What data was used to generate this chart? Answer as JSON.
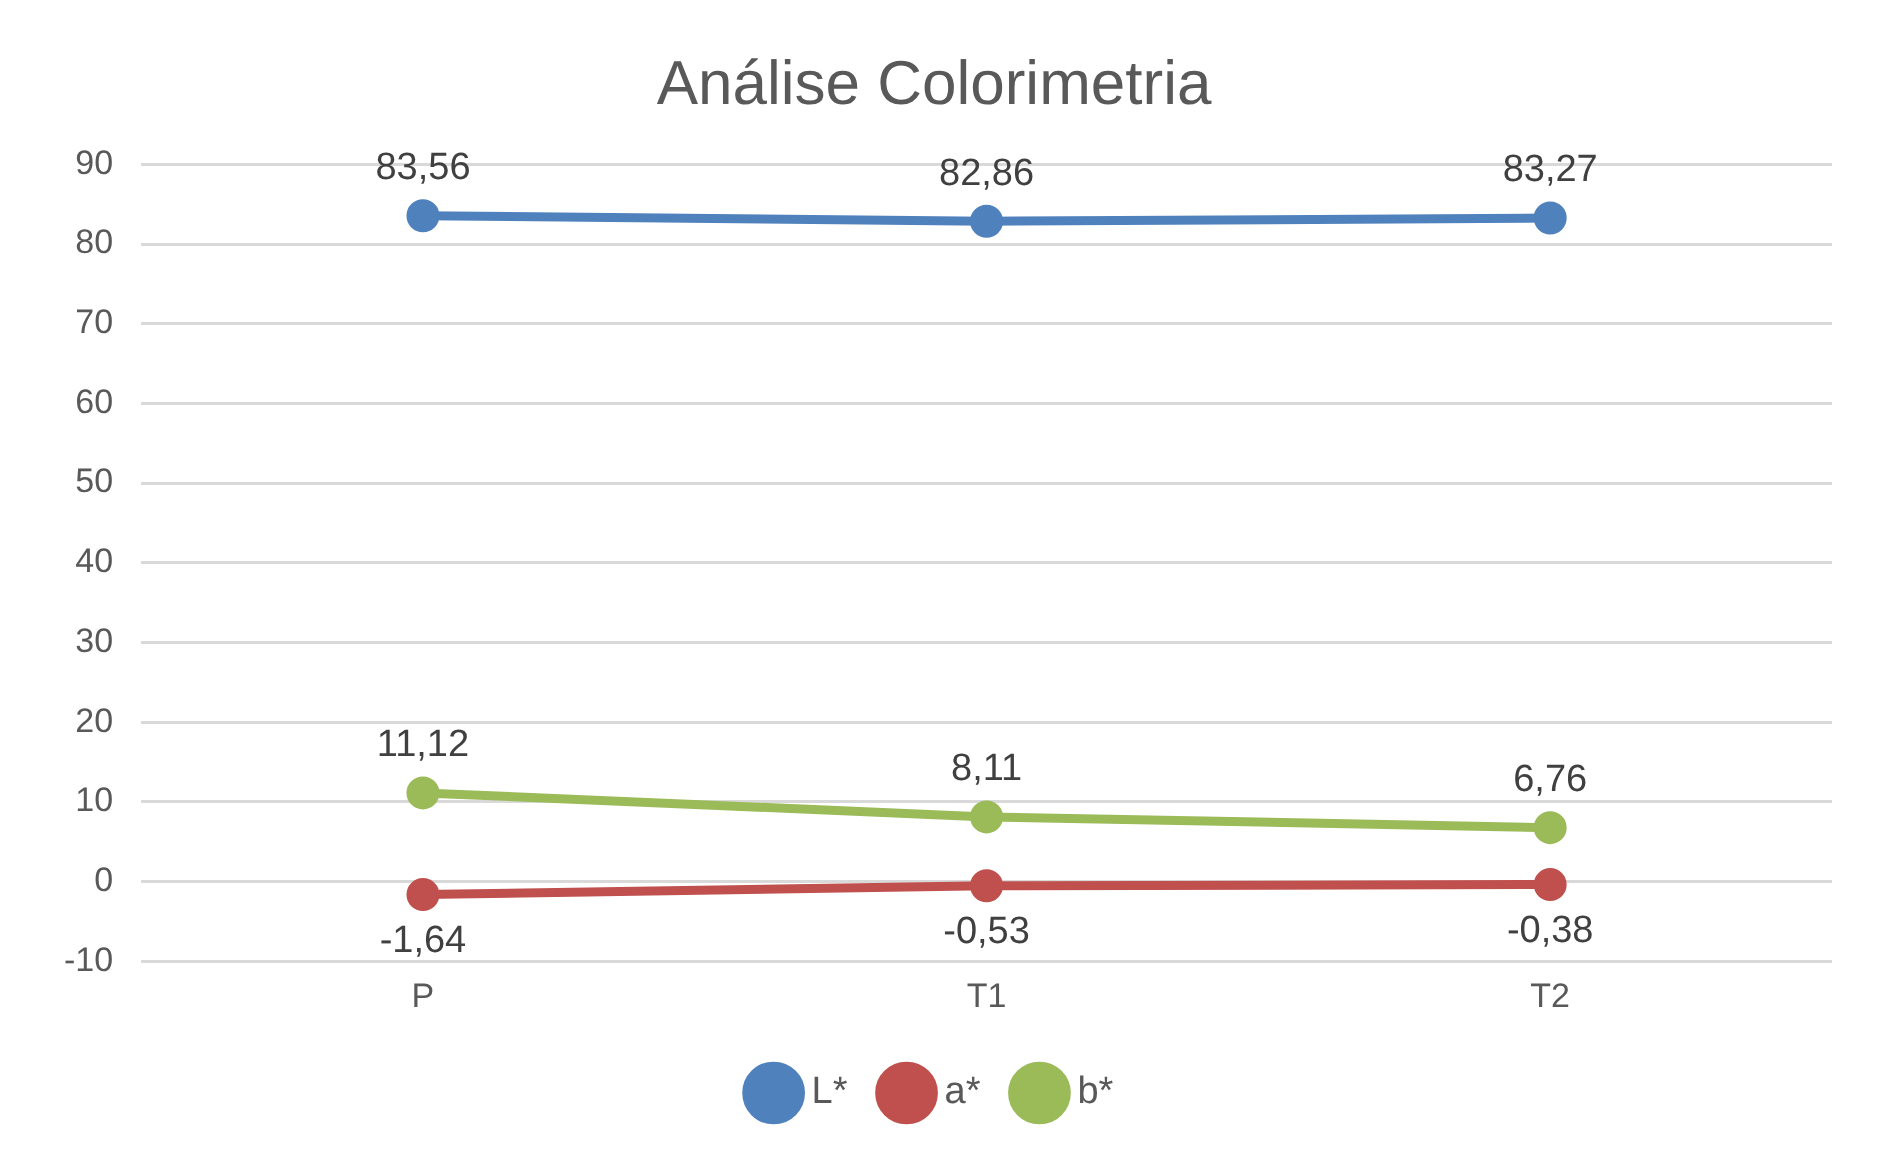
{
  "chart_data": {
    "type": "line",
    "title": "Análise Colorimetria",
    "categories": [
      "P",
      "T1",
      "T2"
    ],
    "series": [
      {
        "name": "L*",
        "color": "#4f81bd",
        "values": [
          83.56,
          82.86,
          83.27
        ],
        "value_labels": [
          "83,56",
          "82,86",
          "83,27"
        ]
      },
      {
        "name": "a*",
        "color": "#c0504d",
        "values": [
          -1.64,
          -0.53,
          -0.38
        ],
        "value_labels": [
          "-1,64",
          "-0,53",
          "-0,38"
        ]
      },
      {
        "name": "b*",
        "color": "#9bbb59",
        "values": [
          11.12,
          8.11,
          6.76
        ],
        "value_labels": [
          "11,12",
          "8,11",
          "6,76"
        ]
      }
    ],
    "ylim": [
      -10,
      90
    ],
    "yticks": [
      -10,
      0,
      10,
      20,
      30,
      40,
      50,
      60,
      70,
      80,
      90
    ],
    "grid": "y",
    "legend": "bottom",
    "marker": "circle",
    "line_style": "solid"
  }
}
